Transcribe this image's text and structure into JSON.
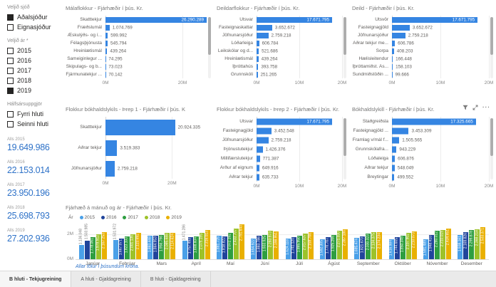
{
  "page": {
    "footnote": "Allar tölur í þúsundum króna.",
    "tabs": [
      {
        "label": "B hluti - Tekjugreining",
        "active": true
      },
      {
        "label": "A hluti - Gjaldagreining",
        "active": false
      },
      {
        "label": "B hluti - Gjaldagreining",
        "active": false
      }
    ]
  },
  "colors": {
    "accent_bar": "#3585E2",
    "kpi_value": "#2E72C8",
    "footnote_blue": "#2E72C8"
  },
  "sidebar": {
    "slicers": [
      {
        "title": "Veljið sjóð",
        "items": [
          {
            "label": "Aðalsjóður",
            "checked": true
          },
          {
            "label": "Eignasjóður",
            "checked": false
          }
        ]
      },
      {
        "title": "Veljið ár *",
        "items": [
          {
            "label": "2015",
            "checked": false
          },
          {
            "label": "2016",
            "checked": false
          },
          {
            "label": "2017",
            "checked": false
          },
          {
            "label": "2018",
            "checked": false
          },
          {
            "label": "2019",
            "checked": true
          }
        ]
      },
      {
        "title": "Hálfsársuppgjör",
        "items": [
          {
            "label": "Fyrri hluti",
            "checked": false
          },
          {
            "label": "Seinni hluti",
            "checked": false
          }
        ]
      }
    ],
    "kpis": [
      {
        "label": "Alls 2015",
        "value": "19.649.986"
      },
      {
        "label": "Alls 2016",
        "value": "22.153.014"
      },
      {
        "label": "Alls 2017",
        "value": "23.950.196"
      },
      {
        "label": "Alls 2018",
        "value": "25.698.793"
      },
      {
        "label": "Alls 2019",
        "value": "27.202.936"
      }
    ]
  },
  "chart_data": [
    {
      "type": "bar",
      "orientation": "horizontal",
      "title": "Málaflokkur - Fjárhæðir í þús. Kr.",
      "categories": [
        "Skatttekjur",
        "Fræðslumál",
        "Æskulýðs- og í...",
        "Félagsþjónusta",
        "Hreinlætismál",
        "Sameiginlegur ...",
        "Skipulags- og b...",
        "Fjármunatekjur ..."
      ],
      "values": [
        26290289,
        1074769,
        599992,
        545794,
        439264,
        74295,
        73023,
        70142
      ],
      "axis_max": 26290289,
      "ticks": [
        {
          "label": "0M",
          "value": 0
        },
        {
          "label": "20M",
          "value": 20000000
        }
      ],
      "first_label_inside": true,
      "scrollbar": true
    },
    {
      "type": "bar",
      "orientation": "horizontal",
      "title": "Deildarflokkur - Fjárhæðir í þús. Kr.",
      "categories": [
        "Útsvar",
        "Fasteignaskattar",
        "Jöfnunarsjóður",
        "Lóðarleiga",
        "Leikskólar og d...",
        "Hreinlætismál",
        "Íþróttahús",
        "Grunnskóli"
      ],
      "values": [
        17671795,
        3652672,
        2759218,
        606784,
        521686,
        439264,
        393758,
        251265
      ],
      "axis_max": 20000000,
      "ticks": [
        {
          "label": "0M",
          "value": 0
        },
        {
          "label": "10M",
          "value": 10000000
        },
        {
          "label": "20M",
          "value": 20000000
        }
      ],
      "first_label_inside": true,
      "scrollbar": true
    },
    {
      "type": "bar",
      "orientation": "horizontal",
      "title": "Deild - Fjárhæðir í þús. Kr.",
      "categories": [
        "Útsvör",
        "Fasteignagjöld",
        "Jöfnunarsjóður",
        "Aðrar tekjur me...",
        "Sorpa",
        "Hælisleitendur",
        "Íþróttamiðst. Ás...",
        "Sundmiðstöðin ..."
      ],
      "values": [
        17671795,
        3652672,
        2759218,
        606786,
        408203,
        166448,
        158103,
        99666
      ],
      "axis_max": 20000000,
      "ticks": [
        {
          "label": "0M",
          "value": 0
        },
        {
          "label": "10M",
          "value": 10000000
        },
        {
          "label": "20M",
          "value": 20000000
        }
      ],
      "first_label_inside": true,
      "scrollbar": true
    },
    {
      "type": "bar",
      "orientation": "horizontal",
      "title": "Flokkur bókhaldslykils - Þrep 1 - Fjárhæðir í þús. Kr.",
      "categories": [
        "Skatttekjur",
        "Aðrar tekjur",
        "Jöfnunarsjóður"
      ],
      "values": [
        20924335,
        3519383,
        2759218
      ],
      "axis_max": 24000000,
      "ticks": [
        {
          "label": "0M",
          "value": 0
        },
        {
          "label": "20M",
          "value": 20000000
        }
      ],
      "first_label_inside": false,
      "scrollbar": false
    },
    {
      "type": "bar",
      "orientation": "horizontal",
      "title": "Flokkur bókhaldslykils - Þrep 2 - Fjárhæðir í þús. Kr.",
      "categories": [
        "Útsvar",
        "Fasteignagjöld",
        "Jöfnunarsjóður",
        "Þjónustutekjur",
        "Millifærslutekjur",
        "Arður af eignum",
        "Aðrar tekjur"
      ],
      "values": [
        17671795,
        3452548,
        2759218,
        1426376,
        771387,
        649916,
        635733
      ],
      "axis_max": 20000000,
      "ticks": [
        {
          "label": "0M",
          "value": 0
        },
        {
          "label": "10M",
          "value": 10000000
        },
        {
          "label": "20M",
          "value": 20000000
        }
      ],
      "first_label_inside": true,
      "scrollbar": true
    },
    {
      "type": "bar",
      "orientation": "horizontal",
      "title": "Bókhaldslykill - Fjárhæðir í þús. Kr.",
      "categories": [
        "Staðgreiðsla",
        "Fasteignagjöld ...",
        "Framlag v/mál f...",
        "Grunnskólafra...",
        "Lóðaleiga",
        "Aðrar tekjur",
        "Breytingar"
      ],
      "values": [
        17325665,
        3453309,
        1505565,
        943229,
        606876,
        548049,
        499552
      ],
      "axis_max": 20000000,
      "ticks": [
        {
          "label": "0M",
          "value": 0
        },
        {
          "label": "10M",
          "value": 10000000
        },
        {
          "label": "20M",
          "value": 20000000
        }
      ],
      "first_label_inside": true,
      "scrollbar": true
    },
    {
      "type": "bar",
      "orientation": "vertical",
      "title": "Fjárhæð á mánuð og ár - Fjárhæðir í þús. Kr.",
      "legend_title": "Ár",
      "legend_position": "top",
      "categories": [
        "Janúar",
        "Febrúar",
        "Mars",
        "Apríl",
        "Maí",
        "Júní",
        "Júlí",
        "Ágúst",
        "September",
        "Október",
        "Nóvember",
        "Desember"
      ],
      "series": [
        {
          "name": "2015",
          "color": "#4AA0E8",
          "values": [
            1136048,
            1531972,
            1883448,
            1471286,
            1881726,
            1654922,
            1624118,
            1592305,
            1685474,
            1616984,
            1591489,
            1938161
          ]
        },
        {
          "name": "2016",
          "color": "#20449B",
          "values": [
            1503985,
            1667071,
            1864953,
            1757493,
            1818822,
            1883786,
            1741120,
            1776767,
            1821670,
            1744665,
            1948410,
            2169826
          ]
        },
        {
          "name": "2017",
          "color": "#2E9E40",
          "values": [
            1778061,
            1823103,
            1956796,
            1808604,
            2072192,
            1933925,
            1865950,
            1925266,
            2030323,
            1850349,
            2280012,
            2299878
          ]
        },
        {
          "name": "2018",
          "color": "#9DC229",
          "values": [
            1979912,
            2001136,
            2085688,
            2079195,
            2433707,
            2283973,
            2017637,
            2271330,
            2134375,
            2107902,
            2310019,
            2368218
          ]
        },
        {
          "name": "2019",
          "color": "#E9B000",
          "values": [
            2167253,
            2123692,
            2114624,
            2316013,
            2791640,
            2198951,
            2159766,
            2387186,
            2174234,
            2210073,
            2434651,
            2533371
          ]
        }
      ],
      "ylim": [
        0,
        2950000
      ],
      "yticks": [
        {
          "label": "0M",
          "value": 0
        },
        {
          "label": "2M",
          "value": 2000000
        }
      ],
      "grid": true
    }
  ]
}
